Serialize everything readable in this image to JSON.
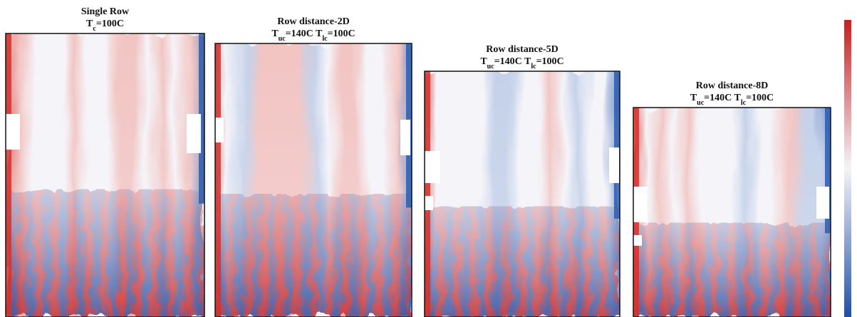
{
  "panels": [
    {
      "title": "Single Row",
      "subtitle": [
        "T",
        "c",
        "=100C"
      ]
    },
    {
      "title": "Row distance-2D",
      "subtitle": [
        "T",
        "uc",
        "=140C  T",
        "lc",
        "=100C"
      ]
    },
    {
      "title": "Row distance-5D",
      "subtitle": [
        "T",
        "uc",
        "=140C  T",
        "lc",
        "=100C"
      ]
    },
    {
      "title": "Row distance-8D",
      "subtitle": [
        "T",
        "uc",
        "=140C  T",
        "lc",
        "=100C"
      ]
    }
  ]
}
